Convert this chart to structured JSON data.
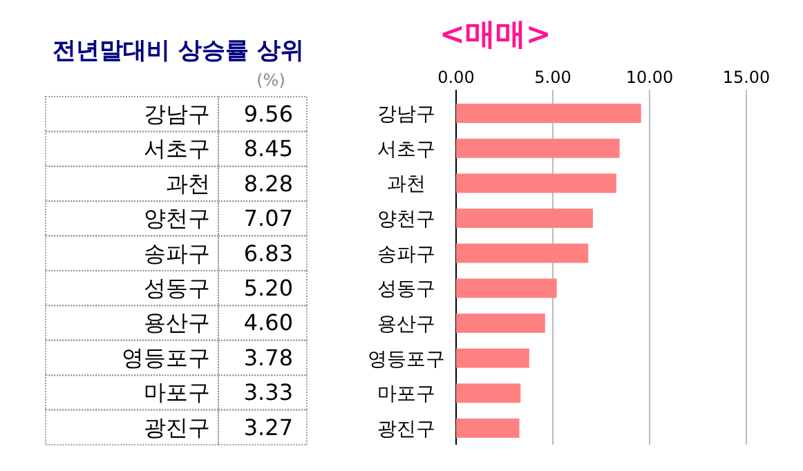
{
  "chart_data": {
    "type": "bar",
    "orientation": "horizontal",
    "title": "전년말대비 상승률 상위",
    "subtitle": "<매매>",
    "annotations": [
      "(%)"
    ],
    "categories": [
      "강남구",
      "서초구",
      "과천",
      "양천구",
      "송파구",
      "성동구",
      "용산구",
      "영등포구",
      "마포구",
      "광진구"
    ],
    "values": [
      9.56,
      8.45,
      8.28,
      7.07,
      6.83,
      5.2,
      4.6,
      3.78,
      3.33,
      3.27
    ],
    "value_labels": [
      "9.56",
      "8.45",
      "8.28",
      "7.07",
      "6.83",
      "5.20",
      "4.60",
      "3.78",
      "3.33",
      "3.27"
    ],
    "color": "#ff8080",
    "xlim": [
      0,
      15
    ],
    "xticks": [
      {
        "value": 0,
        "label": "0.00"
      },
      {
        "value": 5,
        "label": "5.00"
      },
      {
        "value": 10,
        "label": "10.00"
      },
      {
        "value": 15,
        "label": "15.00"
      }
    ],
    "grid": "x"
  }
}
